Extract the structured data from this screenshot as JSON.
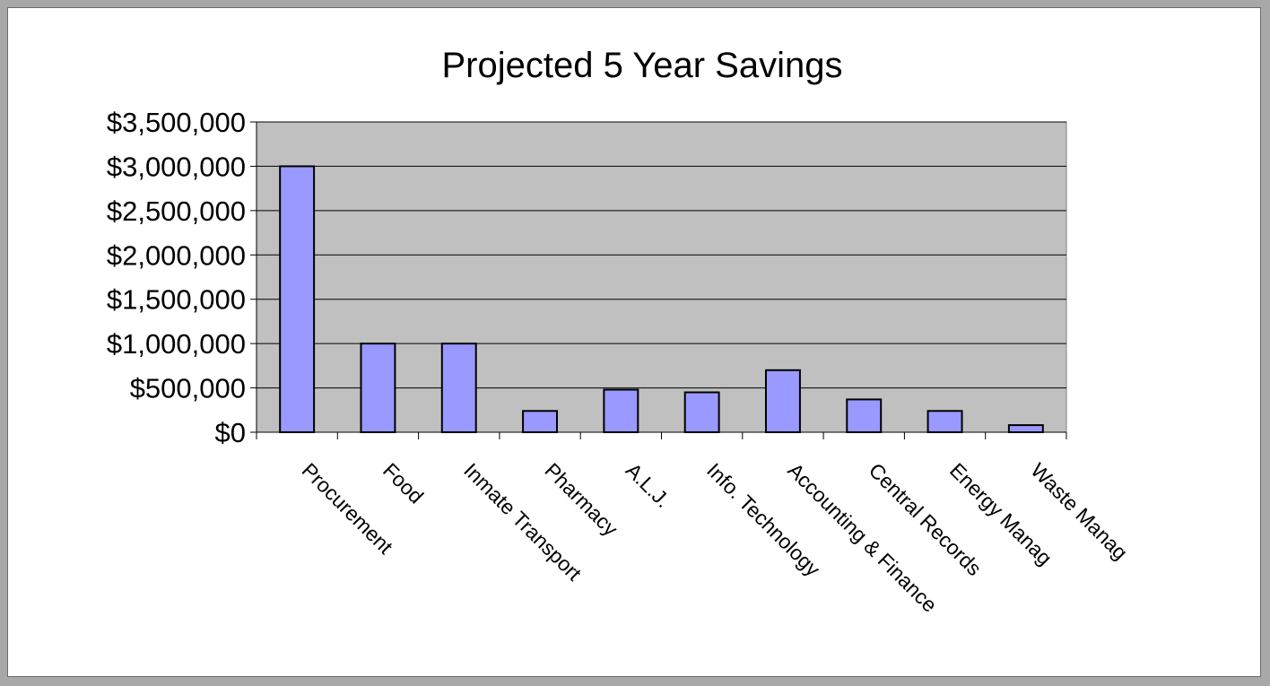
{
  "chart_data": {
    "type": "bar",
    "title": "Projected 5 Year Savings",
    "xlabel": "",
    "ylabel": "",
    "categories": [
      "Procurement",
      "Food",
      "Inmate Transport",
      "Pharmacy",
      "A.L.J.",
      "Info. Technology",
      "Accounting & Finance",
      "Central Records",
      "Energy Manag",
      "Waste Manag"
    ],
    "values": [
      3000000,
      1000000,
      1000000,
      240000,
      480000,
      450000,
      700000,
      370000,
      240000,
      80000
    ],
    "ylim": [
      0,
      3500000
    ],
    "yticks": [
      0,
      500000,
      1000000,
      1500000,
      2000000,
      2500000,
      3000000,
      3500000
    ],
    "ytick_labels": [
      "$0",
      "$500,000",
      "$1,000,000",
      "$1,500,000",
      "$2,000,000",
      "$2,500,000",
      "$3,000,000",
      "$3,500,000"
    ],
    "grid": true,
    "legend": "none",
    "colors": {
      "bar_fill": "#9999ff",
      "bar_stroke": "#000000",
      "plot_bg": "#c0c0c0",
      "gridline": "#000000"
    }
  }
}
